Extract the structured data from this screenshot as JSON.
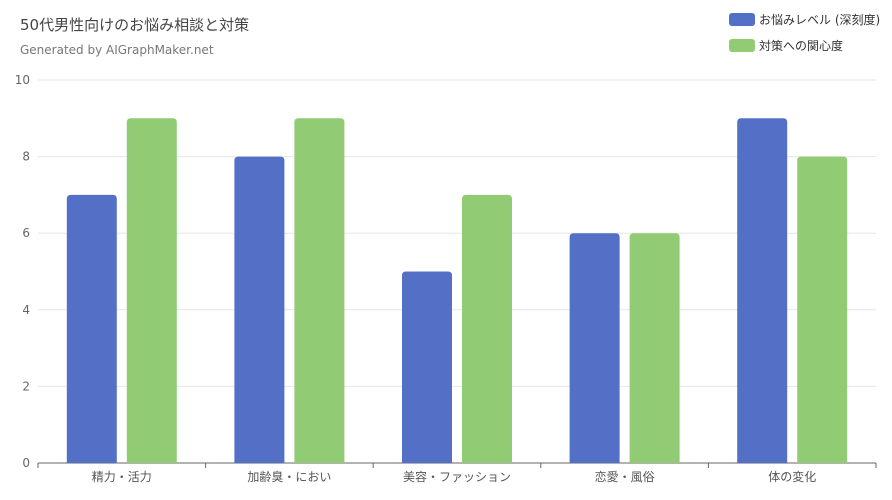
{
  "title": "50代男性向けのお悩み相談と対策",
  "subtitle": "Generated by AIGraphMaker.net",
  "colors": {
    "series1": "#5470c6",
    "series2": "#91cc75",
    "grid": "#e6e6e6",
    "axis": "#666666"
  },
  "chart_data": {
    "type": "bar",
    "title": "50代男性向けのお悩み相談と対策",
    "subtitle": "Generated by AIGraphMaker.net",
    "categories": [
      "精力・活力",
      "加齢臭・におい",
      "美容・ファッション",
      "恋愛・風俗",
      "体の変化"
    ],
    "series": [
      {
        "name": "お悩みレベル (深刻度)",
        "values": [
          7,
          8,
          5,
          6,
          9
        ]
      },
      {
        "name": "対策への関心度",
        "values": [
          9,
          9,
          7,
          6,
          8
        ]
      }
    ],
    "ylim": [
      0,
      10
    ],
    "yticks": [
      0,
      2,
      4,
      6,
      8,
      10
    ],
    "grid": true,
    "legend_position": "top-right"
  }
}
